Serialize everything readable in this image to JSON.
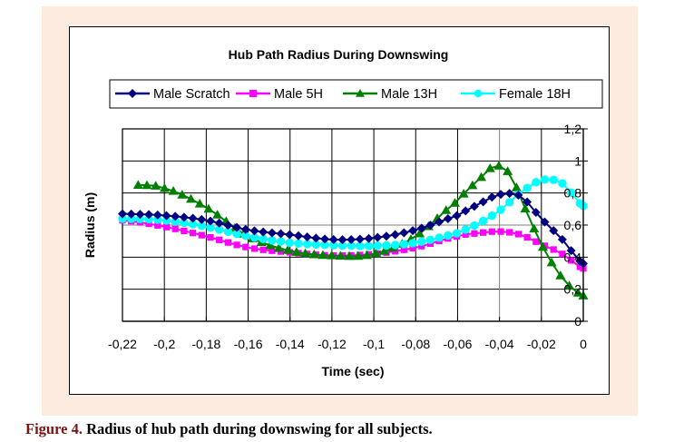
{
  "caption": {
    "figure_label": "Figure 4.",
    "text": " Radius of hub path during downswing for all subjects."
  },
  "chart_data": {
    "type": "line",
    "title": "Hub Path Radius During Downswing",
    "xlabel": "Time (sec)",
    "ylabel": "Radius (m)",
    "xlim": [
      -0.22,
      0
    ],
    "ylim": [
      0,
      1.2
    ],
    "x_ticks": [
      -0.22,
      -0.2,
      -0.18,
      -0.16,
      -0.14,
      -0.12,
      -0.1,
      -0.08,
      -0.06,
      -0.04,
      -0.02,
      0
    ],
    "x_tick_labels": [
      "-0,22",
      "-0,2",
      "-0,18",
      "-0,16",
      "-0,14",
      "-0,12",
      "-0,1",
      "-0,08",
      "-0,06",
      "-0,04",
      "-0,02",
      "0"
    ],
    "y_ticks": [
      0,
      0.2,
      0.4,
      0.6,
      0.8,
      1,
      1.2
    ],
    "y_tick_labels": [
      "0",
      "0,2",
      "0,4",
      "0,6",
      "0,8",
      "1",
      "1,2"
    ],
    "y_axis_side": "right",
    "grid": true,
    "legend_position": "top",
    "series": [
      {
        "name": "Male Scratch",
        "color": "#000080",
        "marker": "diamond",
        "x": [
          -0.22,
          -0.2,
          -0.18,
          -0.16,
          -0.14,
          -0.12,
          -0.1,
          -0.08,
          -0.06,
          -0.05,
          -0.04,
          -0.03,
          -0.02,
          -0.01,
          0
        ],
        "y": [
          0.67,
          0.66,
          0.63,
          0.57,
          0.54,
          0.51,
          0.52,
          0.57,
          0.66,
          0.73,
          0.79,
          0.78,
          0.64,
          0.51,
          0.36
        ]
      },
      {
        "name": "Male 5H",
        "color": "#ff00ff",
        "marker": "square",
        "x": [
          -0.22,
          -0.2,
          -0.18,
          -0.16,
          -0.14,
          -0.12,
          -0.1,
          -0.08,
          -0.06,
          -0.05,
          -0.04,
          -0.03,
          -0.02,
          -0.01,
          0
        ],
        "y": [
          0.63,
          0.59,
          0.53,
          0.46,
          0.43,
          0.41,
          0.42,
          0.46,
          0.53,
          0.55,
          0.56,
          0.54,
          0.48,
          0.42,
          0.33
        ]
      },
      {
        "name": "Male 13H",
        "color": "#008000",
        "marker": "triangle",
        "x": [
          -0.2125,
          -0.2,
          -0.18,
          -0.16,
          -0.14,
          -0.12,
          -0.1,
          -0.08,
          -0.06,
          -0.05,
          -0.042,
          -0.035,
          -0.03,
          -0.02,
          -0.01,
          0
        ],
        "y": [
          0.85,
          0.83,
          0.71,
          0.53,
          0.44,
          0.41,
          0.42,
          0.53,
          0.75,
          0.88,
          0.97,
          0.92,
          0.76,
          0.48,
          0.27,
          0.16
        ]
      },
      {
        "name": "Female 18H",
        "color": "#00ffff",
        "marker": "circle",
        "x": [
          -0.22,
          -0.2,
          -0.18,
          -0.16,
          -0.14,
          -0.12,
          -0.1,
          -0.08,
          -0.06,
          -0.05,
          -0.04,
          -0.03,
          -0.02,
          -0.01,
          0
        ],
        "y": [
          0.64,
          0.63,
          0.59,
          0.53,
          0.49,
          0.475,
          0.47,
          0.49,
          0.55,
          0.61,
          0.69,
          0.8,
          0.88,
          0.86,
          0.72
        ]
      }
    ]
  }
}
